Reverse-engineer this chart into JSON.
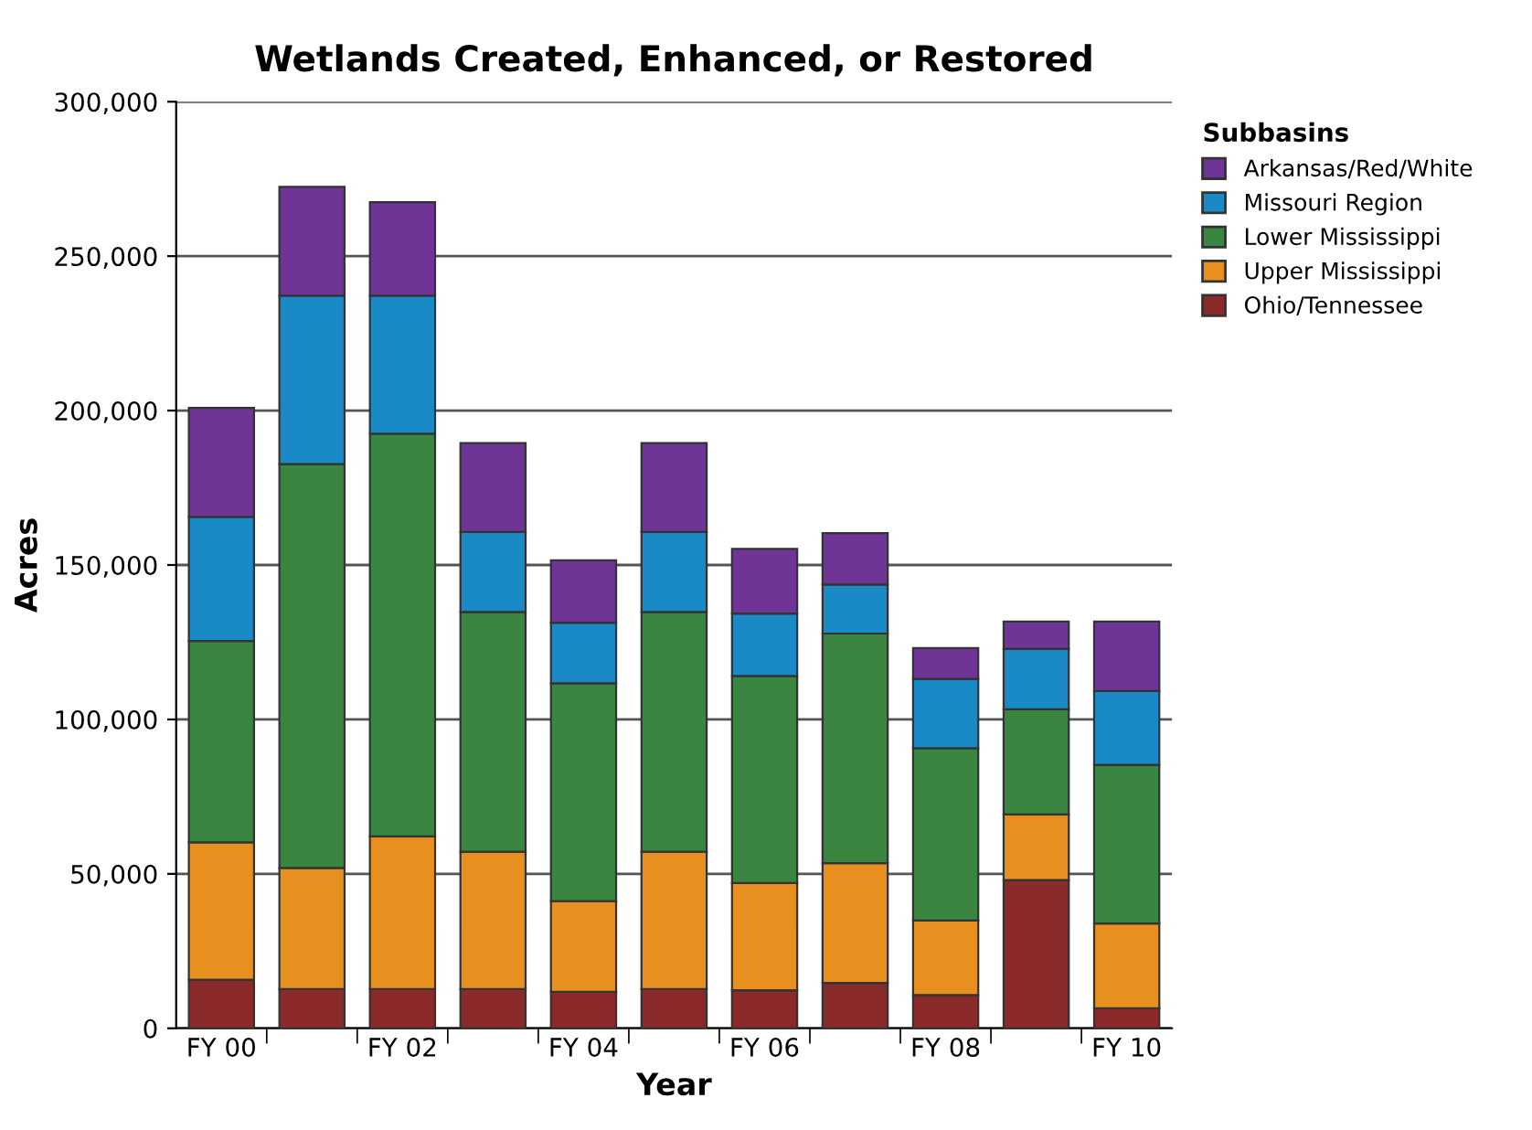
{
  "chart_data": {
    "type": "bar",
    "stacked": true,
    "title": "Wetlands Created, Enhanced, or Restored",
    "xlabel": "Year",
    "ylabel": "Acres",
    "legend_title": "Subbasins",
    "legend": "right",
    "categories": [
      "FY 00",
      null,
      "FY 02",
      null,
      "FY 04",
      null,
      "FY 06",
      null,
      "FY 08",
      null,
      "FY 10"
    ],
    "series": [
      {
        "name": "Ohio/Tennessee",
        "color": "#8b2a2a",
        "values": [
          15700,
          12700,
          12700,
          12700,
          11800,
          12700,
          12300,
          14700,
          10800,
          48000,
          6500
        ]
      },
      {
        "name": "Upper Mississippi",
        "color": "#e8901f",
        "values": [
          44500,
          39200,
          49400,
          44500,
          29400,
          44500,
          34700,
          38800,
          24100,
          21200,
          27400
        ]
      },
      {
        "name": "Lower Mississippi",
        "color": "#3a8540",
        "values": [
          65200,
          130800,
          130400,
          77600,
          70500,
          77600,
          67100,
          74300,
          55800,
          34100,
          51400
        ]
      },
      {
        "name": "Missouri Region",
        "color": "#1a8ac6",
        "values": [
          40200,
          54500,
          44700,
          25900,
          19600,
          25900,
          20200,
          15900,
          22400,
          19600,
          23900
        ]
      },
      {
        "name": "Arkansas/Red/White",
        "color": "#6e3596",
        "values": [
          35300,
          35200,
          30300,
          28800,
          20200,
          28800,
          20900,
          16600,
          10000,
          8800,
          22500
        ]
      }
    ],
    "ylim": [
      0,
      300000
    ],
    "yticks": [
      {
        "value": 0,
        "label": "0"
      },
      {
        "value": 50000,
        "label": "50,000"
      },
      {
        "value": 100000,
        "label": "100,000"
      },
      {
        "value": 150000,
        "label": "150,000"
      },
      {
        "value": 200000,
        "label": "200,000"
      },
      {
        "value": 250000,
        "label": "250,000"
      },
      {
        "value": 300000,
        "label": "300,000"
      }
    ],
    "grid": "y"
  }
}
